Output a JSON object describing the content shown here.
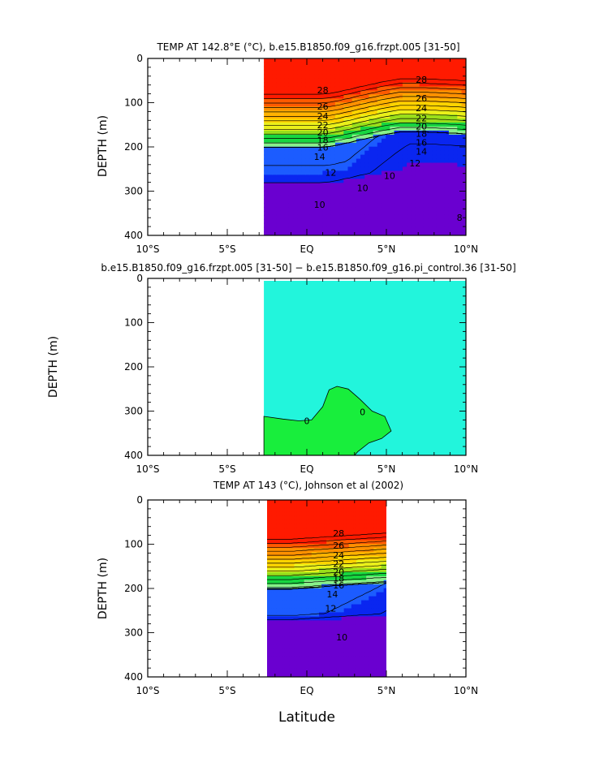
{
  "figure": {
    "xlabel": "Latitude"
  },
  "chart_data": [
    {
      "type": "heatmap",
      "title": "TEMP AT 142.8°E (°C), b.e15.B1850.f09_g16.frzpt.005 [31-50]",
      "xlabel": "",
      "ylabel": "DEPTH (m)",
      "xlim": [
        -10,
        10
      ],
      "ylim": [
        0,
        400
      ],
      "y_inverted": true,
      "xticks": [
        -10,
        -5,
        0,
        5,
        10
      ],
      "xtick_labels": [
        "10°S",
        "5°S",
        "EQ",
        "5°N",
        "10°N"
      ],
      "yticks": [
        0,
        100,
        200,
        300,
        400
      ],
      "ytick_labels": [
        "0",
        "100",
        "200",
        "300",
        "400"
      ],
      "data_x_range": [
        -2.7,
        10
      ],
      "contour_interval": 1,
      "contour_labels": [
        {
          "text": "28",
          "x": 1.0,
          "y": 72
        },
        {
          "text": "28",
          "x": 7.2,
          "y": 48
        },
        {
          "text": "26",
          "x": 1.0,
          "y": 108
        },
        {
          "text": "26",
          "x": 7.2,
          "y": 90
        },
        {
          "text": "24",
          "x": 1.0,
          "y": 130
        },
        {
          "text": "24",
          "x": 7.2,
          "y": 112
        },
        {
          "text": "22",
          "x": 1.0,
          "y": 150
        },
        {
          "text": "22",
          "x": 7.2,
          "y": 135
        },
        {
          "text": "20",
          "x": 1.0,
          "y": 167
        },
        {
          "text": "20",
          "x": 7.2,
          "y": 153
        },
        {
          "text": "18",
          "x": 1.0,
          "y": 184
        },
        {
          "text": "18",
          "x": 7.2,
          "y": 170
        },
        {
          "text": "16",
          "x": 1.0,
          "y": 201
        },
        {
          "text": "16",
          "x": 7.2,
          "y": 190
        },
        {
          "text": "14",
          "x": 0.8,
          "y": 222
        },
        {
          "text": "14",
          "x": 7.2,
          "y": 210
        },
        {
          "text": "12",
          "x": 1.5,
          "y": 258
        },
        {
          "text": "12",
          "x": 6.8,
          "y": 237
        },
        {
          "text": "10",
          "x": 3.5,
          "y": 293
        },
        {
          "text": "10",
          "x": 5.2,
          "y": 265
        },
        {
          "text": "10",
          "x": 0.8,
          "y": 330
        },
        {
          "text": "8",
          "x": 9.6,
          "y": 360
        }
      ]
    },
    {
      "type": "heatmap",
      "title": "b.e15.B1850.f09_g16.frzpt.005 [31-50] − b.e15.B1850.f09_g16.pi_control.36 [31-50]",
      "xlabel": "",
      "ylabel": "DEPTH (m)",
      "xlim": [
        -10,
        10
      ],
      "ylim": [
        0,
        400
      ],
      "y_inverted": true,
      "xticks": [
        -10,
        -5,
        0,
        5,
        10
      ],
      "xtick_labels": [
        "10°S",
        "5°S",
        "EQ",
        "5°N",
        "10°N"
      ],
      "yticks": [
        0,
        100,
        200,
        300,
        400
      ],
      "ytick_labels": [
        "0",
        "100",
        "200",
        "300",
        "400"
      ],
      "data_x_range": [
        -2.7,
        10
      ],
      "contour_labels": [
        {
          "text": "0",
          "x": 0.0,
          "y": 322
        },
        {
          "text": "0",
          "x": 3.5,
          "y": 302
        }
      ]
    },
    {
      "type": "heatmap",
      "title": "TEMP AT 143 (°C), Johnson et al (2002)",
      "xlabel": "",
      "ylabel": "DEPTH (m)",
      "xlim": [
        -10,
        10
      ],
      "ylim": [
        0,
        400
      ],
      "y_inverted": true,
      "xticks": [
        -10,
        -5,
        0,
        5,
        10
      ],
      "xtick_labels": [
        "10°S",
        "5°S",
        "EQ",
        "5°N",
        "10°N"
      ],
      "yticks": [
        0,
        100,
        200,
        300,
        400
      ],
      "ytick_labels": [
        "0",
        "100",
        "200",
        "300",
        "400"
      ],
      "data_x_range": [
        -2.5,
        5
      ],
      "contour_interval": 1,
      "contour_labels": [
        {
          "text": "28",
          "x": 2.0,
          "y": 75
        },
        {
          "text": "26",
          "x": 2.0,
          "y": 103
        },
        {
          "text": "24",
          "x": 2.0,
          "y": 125
        },
        {
          "text": "22",
          "x": 2.0,
          "y": 144
        },
        {
          "text": "20",
          "x": 2.0,
          "y": 162
        },
        {
          "text": "18",
          "x": 2.0,
          "y": 177
        },
        {
          "text": "16",
          "x": 2.0,
          "y": 193
        },
        {
          "text": "14",
          "x": 1.6,
          "y": 213
        },
        {
          "text": "12",
          "x": 1.5,
          "y": 245
        },
        {
          "text": "10",
          "x": 2.2,
          "y": 310
        }
      ]
    }
  ],
  "colors": {
    "temp_scale": [
      "#6a00d0",
      "#0a26f0",
      "#1c5cff",
      "#148cff",
      "#17b4f5",
      "#22d8ee",
      "#5cf0d2",
      "#88f08a",
      "#17d640",
      "#9adf1a",
      "#eaf01a",
      "#ffd400",
      "#ffb300",
      "#ff9000",
      "#ff5a00",
      "#ff1a00"
    ],
    "diff_background": "#22f5dc",
    "diff_green": "#18ee3c"
  }
}
